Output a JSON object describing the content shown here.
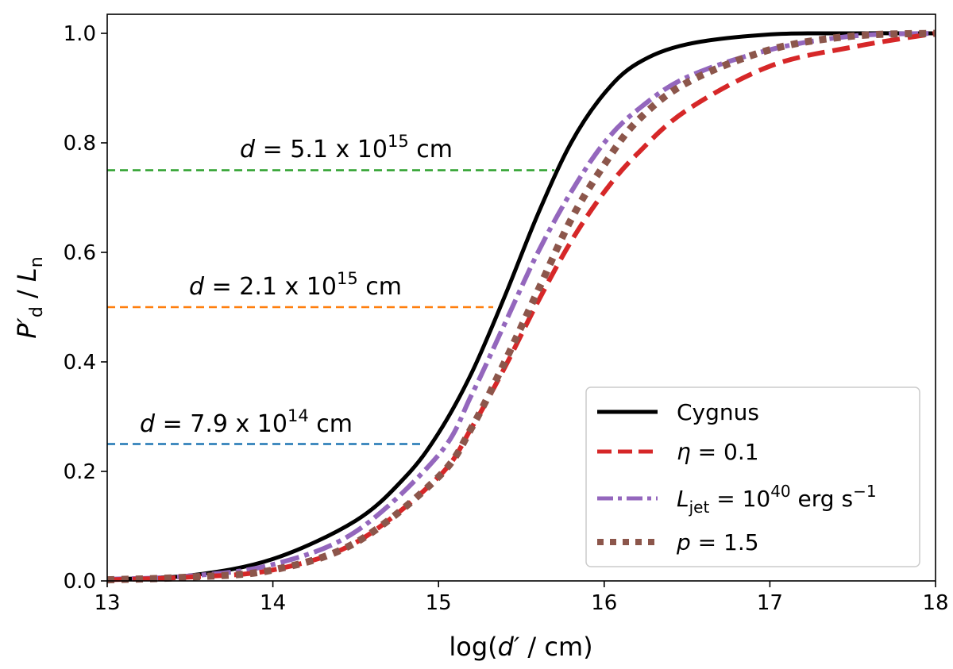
{
  "chart_data": {
    "type": "line",
    "xlabel": {
      "pre": "log(",
      "var": "d′",
      "post": " / cm)"
    },
    "ylabel": {
      "var": "P′",
      "sub": "d",
      "slash": " / ",
      "var2": "L",
      "sub2": "n"
    },
    "xlim": [
      13,
      18
    ],
    "ylim": [
      0,
      1.0
    ],
    "xticks": [
      "13",
      "14",
      "15",
      "16",
      "17",
      "18"
    ],
    "yticks": [
      "0.0",
      "0.2",
      "0.4",
      "0.6",
      "0.8",
      "1.0"
    ],
    "legend_position": "lower-right",
    "series": [
      {
        "name": "Cygnus",
        "color": "#000000",
        "style": "solid",
        "x": [
          13.0,
          13.5,
          14.0,
          14.5,
          14.8,
          15.0,
          15.2,
          15.4,
          15.6,
          15.8,
          16.0,
          16.2,
          16.5,
          17.0,
          17.5,
          18.0
        ],
        "y": [
          0.003,
          0.01,
          0.04,
          0.11,
          0.19,
          0.27,
          0.38,
          0.52,
          0.67,
          0.8,
          0.89,
          0.945,
          0.98,
          0.998,
          1.0,
          1.0
        ]
      },
      {
        "name": "η = 0.1",
        "color": "#d62728",
        "style": "dashed",
        "x": [
          13.0,
          13.5,
          14.0,
          14.5,
          15.0,
          15.2,
          15.4,
          15.6,
          15.8,
          16.0,
          16.2,
          16.5,
          17.0,
          17.5,
          18.0
        ],
        "y": [
          0.002,
          0.007,
          0.02,
          0.07,
          0.19,
          0.28,
          0.39,
          0.51,
          0.62,
          0.71,
          0.78,
          0.86,
          0.94,
          0.975,
          1.0
        ]
      },
      {
        "name": "L_jet = 10^40 erg s^-1",
        "color": "#9467bd",
        "style": "dashdot",
        "x": [
          13.0,
          13.5,
          14.0,
          14.5,
          15.0,
          15.2,
          15.4,
          15.6,
          15.8,
          16.0,
          16.2,
          16.5,
          17.0,
          17.5,
          18.0
        ],
        "y": [
          0.003,
          0.009,
          0.03,
          0.09,
          0.23,
          0.34,
          0.47,
          0.6,
          0.71,
          0.8,
          0.86,
          0.92,
          0.97,
          0.995,
          1.0
        ]
      },
      {
        "name": "p = 1.5",
        "color": "#8c564b",
        "style": "dotted",
        "x": [
          13.0,
          13.5,
          14.0,
          14.5,
          15.0,
          15.2,
          15.4,
          15.6,
          15.8,
          16.0,
          16.2,
          16.5,
          17.0,
          17.5,
          18.0
        ],
        "y": [
          0.002,
          0.007,
          0.02,
          0.07,
          0.19,
          0.28,
          0.4,
          0.53,
          0.66,
          0.76,
          0.84,
          0.91,
          0.97,
          0.995,
          1.0
        ]
      }
    ],
    "hlines": [
      {
        "y": 0.75,
        "xmax": 15.7,
        "color": "#2ca02c",
        "label": {
          "d": "d",
          "eq": " = ",
          "mant": "5.1",
          "times": " x 10",
          "exp": "15",
          "unit": " cm"
        }
      },
      {
        "y": 0.5,
        "xmax": 15.33,
        "color": "#ff7f0e",
        "label": {
          "d": "d",
          "eq": " = ",
          "mant": "2.1",
          "times": " x 10",
          "exp": "15",
          "unit": " cm"
        }
      },
      {
        "y": 0.25,
        "xmax": 14.9,
        "color": "#1f77b4",
        "label": {
          "d": "d",
          "eq": " = ",
          "mant": "7.9",
          "times": " x 10",
          "exp": "14",
          "unit": " cm"
        }
      }
    ],
    "legend": {
      "cygnus": "Cygnus",
      "eta": {
        "var": "η",
        "rest": " = 0.1"
      },
      "ljet": {
        "var": "L",
        "sub": "jet",
        "eq": " = 10",
        "exp": "40",
        "unit": " erg s",
        "exp2": "−1"
      },
      "p": {
        "var": "p",
        "rest": " = 1.5"
      }
    }
  }
}
